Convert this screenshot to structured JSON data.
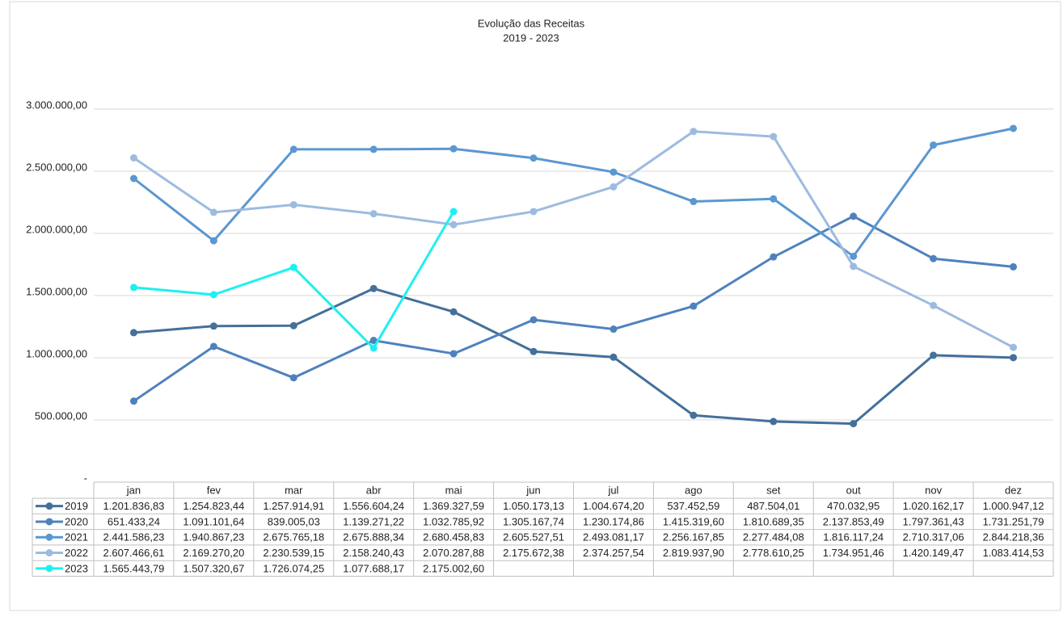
{
  "chart_data": {
    "type": "line",
    "title": "Evolução das Receitas",
    "subtitle": "2019 - 2023",
    "categories": [
      "jan",
      "fev",
      "mar",
      "abr",
      "mai",
      "jun",
      "jul",
      "ago",
      "set",
      "out",
      "nov",
      "dez"
    ],
    "ylim": [
      0,
      3000000
    ],
    "yticks": [
      {
        "value": 0,
        "label": "-"
      },
      {
        "value": 500000,
        "label": "500.000,00"
      },
      {
        "value": 1000000,
        "label": "1.000.000,00"
      },
      {
        "value": 1500000,
        "label": "1.500.000,00"
      },
      {
        "value": 2000000,
        "label": "2.000.000,00"
      },
      {
        "value": 2500000,
        "label": "2.500.000,00"
      },
      {
        "value": 3000000,
        "label": "3.000.000,00"
      }
    ],
    "grid": true,
    "series": [
      {
        "name": "2019",
        "color": "#44709a",
        "values": [
          1201836.83,
          1254823.44,
          1257914.91,
          1556604.24,
          1369327.59,
          1050173.13,
          1004674.2,
          537452.59,
          487504.01,
          470032.95,
          1020162.17,
          1000947.12
        ],
        "value_labels": [
          "1.201.836,83",
          "1.254.823,44",
          "1.257.914,91",
          "1.556.604,24",
          "1.369.327,59",
          "1.050.173,13",
          "1.004.674,20",
          "537.452,59",
          "487.504,01",
          "470.032,95",
          "1.020.162,17",
          "1.000.947,12"
        ]
      },
      {
        "name": "2020",
        "color": "#4f81bd",
        "values": [
          651433.24,
          1091101.64,
          839005.03,
          1139271.22,
          1032785.92,
          1305167.74,
          1230174.86,
          1415319.6,
          1810689.35,
          2137853.49,
          1797361.43,
          1731251.79
        ],
        "value_labels": [
          "651.433,24",
          "1.091.101,64",
          "839.005,03",
          "1.139.271,22",
          "1.032.785,92",
          "1.305.167,74",
          "1.230.174,86",
          "1.415.319,60",
          "1.810.689,35",
          "2.137.853,49",
          "1.797.361,43",
          "1.731.251,79"
        ]
      },
      {
        "name": "2021",
        "color": "#5b97d1",
        "values": [
          2441586.23,
          1940867.23,
          2675765.18,
          2675888.34,
          2680458.83,
          2605527.51,
          2493081.17,
          2256167.85,
          2277484.08,
          1816117.24,
          2710317.06,
          2844218.36
        ],
        "value_labels": [
          "2.441.586,23",
          "1.940.867,23",
          "2.675.765,18",
          "2.675.888,34",
          "2.680.458,83",
          "2.605.527,51",
          "2.493.081,17",
          "2.256.167,85",
          "2.277.484,08",
          "1.816.117,24",
          "2.710.317,06",
          "2.844.218,36"
        ]
      },
      {
        "name": "2022",
        "color": "#9dbbe0",
        "values": [
          2607466.61,
          2169270.2,
          2230539.15,
          2158240.43,
          2070287.88,
          2175672.38,
          2374257.54,
          2819937.9,
          2778610.25,
          1734951.46,
          1420149.47,
          1083414.53
        ],
        "value_labels": [
          "2.607.466,61",
          "2.169.270,20",
          "2.230.539,15",
          "2.158.240,43",
          "2.070.287,88",
          "2.175.672,38",
          "2.374.257,54",
          "2.819.937,90",
          "2.778.610,25",
          "1.734.951,46",
          "1.420.149,47",
          "1.083.414,53"
        ]
      },
      {
        "name": "2023",
        "color": "#1ef0f0",
        "values": [
          1565443.79,
          1507320.67,
          1726074.25,
          1077688.17,
          2175002.6,
          null,
          null,
          null,
          null,
          null,
          null,
          null
        ],
        "value_labels": [
          "1.565.443,79",
          "1.507.320,67",
          "1.726.074,25",
          "1.077.688,17",
          "2.175.002,60",
          null,
          null,
          null,
          null,
          null,
          null,
          null
        ]
      }
    ]
  }
}
